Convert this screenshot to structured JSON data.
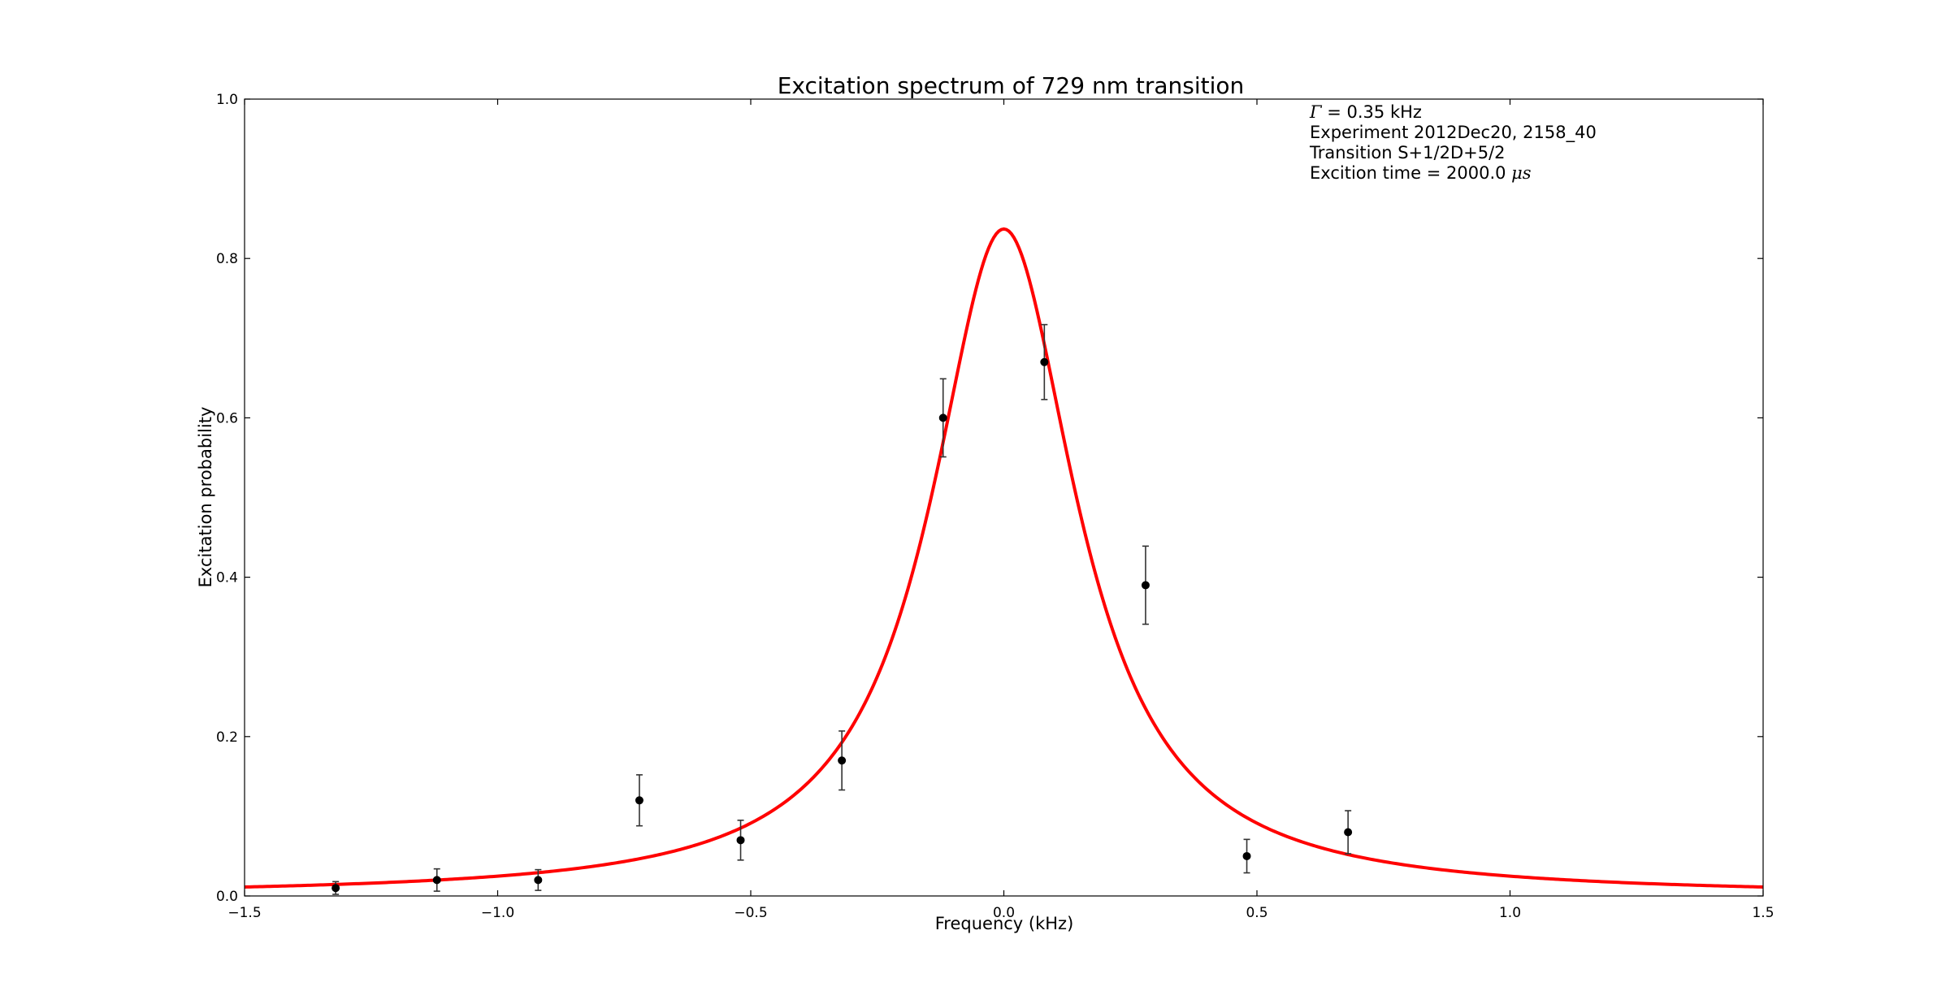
{
  "chart_data": {
    "type": "scatter",
    "title": "Excitation spectrum of 729 nm transition",
    "xlabel": "Frequency (kHz)",
    "ylabel": "Excitation probability",
    "xlim": [
      -1.5,
      1.5
    ],
    "ylim": [
      0.0,
      1.0
    ],
    "x_ticks": [
      -1.5,
      -1.0,
      -0.5,
      0.0,
      0.5,
      1.0,
      1.5
    ],
    "x_tick_labels": [
      "−1.5",
      "−1.0",
      "−0.5",
      "0.0",
      "0.5",
      "1.0",
      "1.5"
    ],
    "y_ticks": [
      0.0,
      0.2,
      0.4,
      0.6,
      0.8,
      1.0
    ],
    "y_tick_labels": [
      "0.0",
      "0.2",
      "0.4",
      "0.6",
      "0.8",
      "1.0"
    ],
    "grid": false,
    "annotations": [
      {
        "symbol": "Γ",
        "text": " = 0.35 kHz"
      },
      {
        "text": "Experiment 2012Dec20, 2158_40"
      },
      {
        "text": "Transition S+1/2D+5/2"
      },
      {
        "text": "Excition time = 2000.0 ",
        "symbol_after": "μs"
      }
    ],
    "series": [
      {
        "type": "errorbar",
        "color": "#000000",
        "x": [
          -1.32,
          -1.12,
          -0.92,
          -0.72,
          -0.52,
          -0.32,
          -0.12,
          0.08,
          0.28,
          0.48,
          0.68
        ],
        "y": [
          0.01,
          0.02,
          0.02,
          0.12,
          0.07,
          0.17,
          0.6,
          0.67,
          0.39,
          0.05,
          0.08
        ],
        "yerr": [
          0.008,
          0.014,
          0.013,
          0.032,
          0.025,
          0.037,
          0.049,
          0.047,
          0.049,
          0.021,
          0.027
        ]
      },
      {
        "type": "line",
        "color": "#ff0000",
        "model": "lorentzian",
        "center": 0.0,
        "fwhm": 0.35,
        "amplitude": 0.837,
        "offset": 0.0
      }
    ]
  }
}
